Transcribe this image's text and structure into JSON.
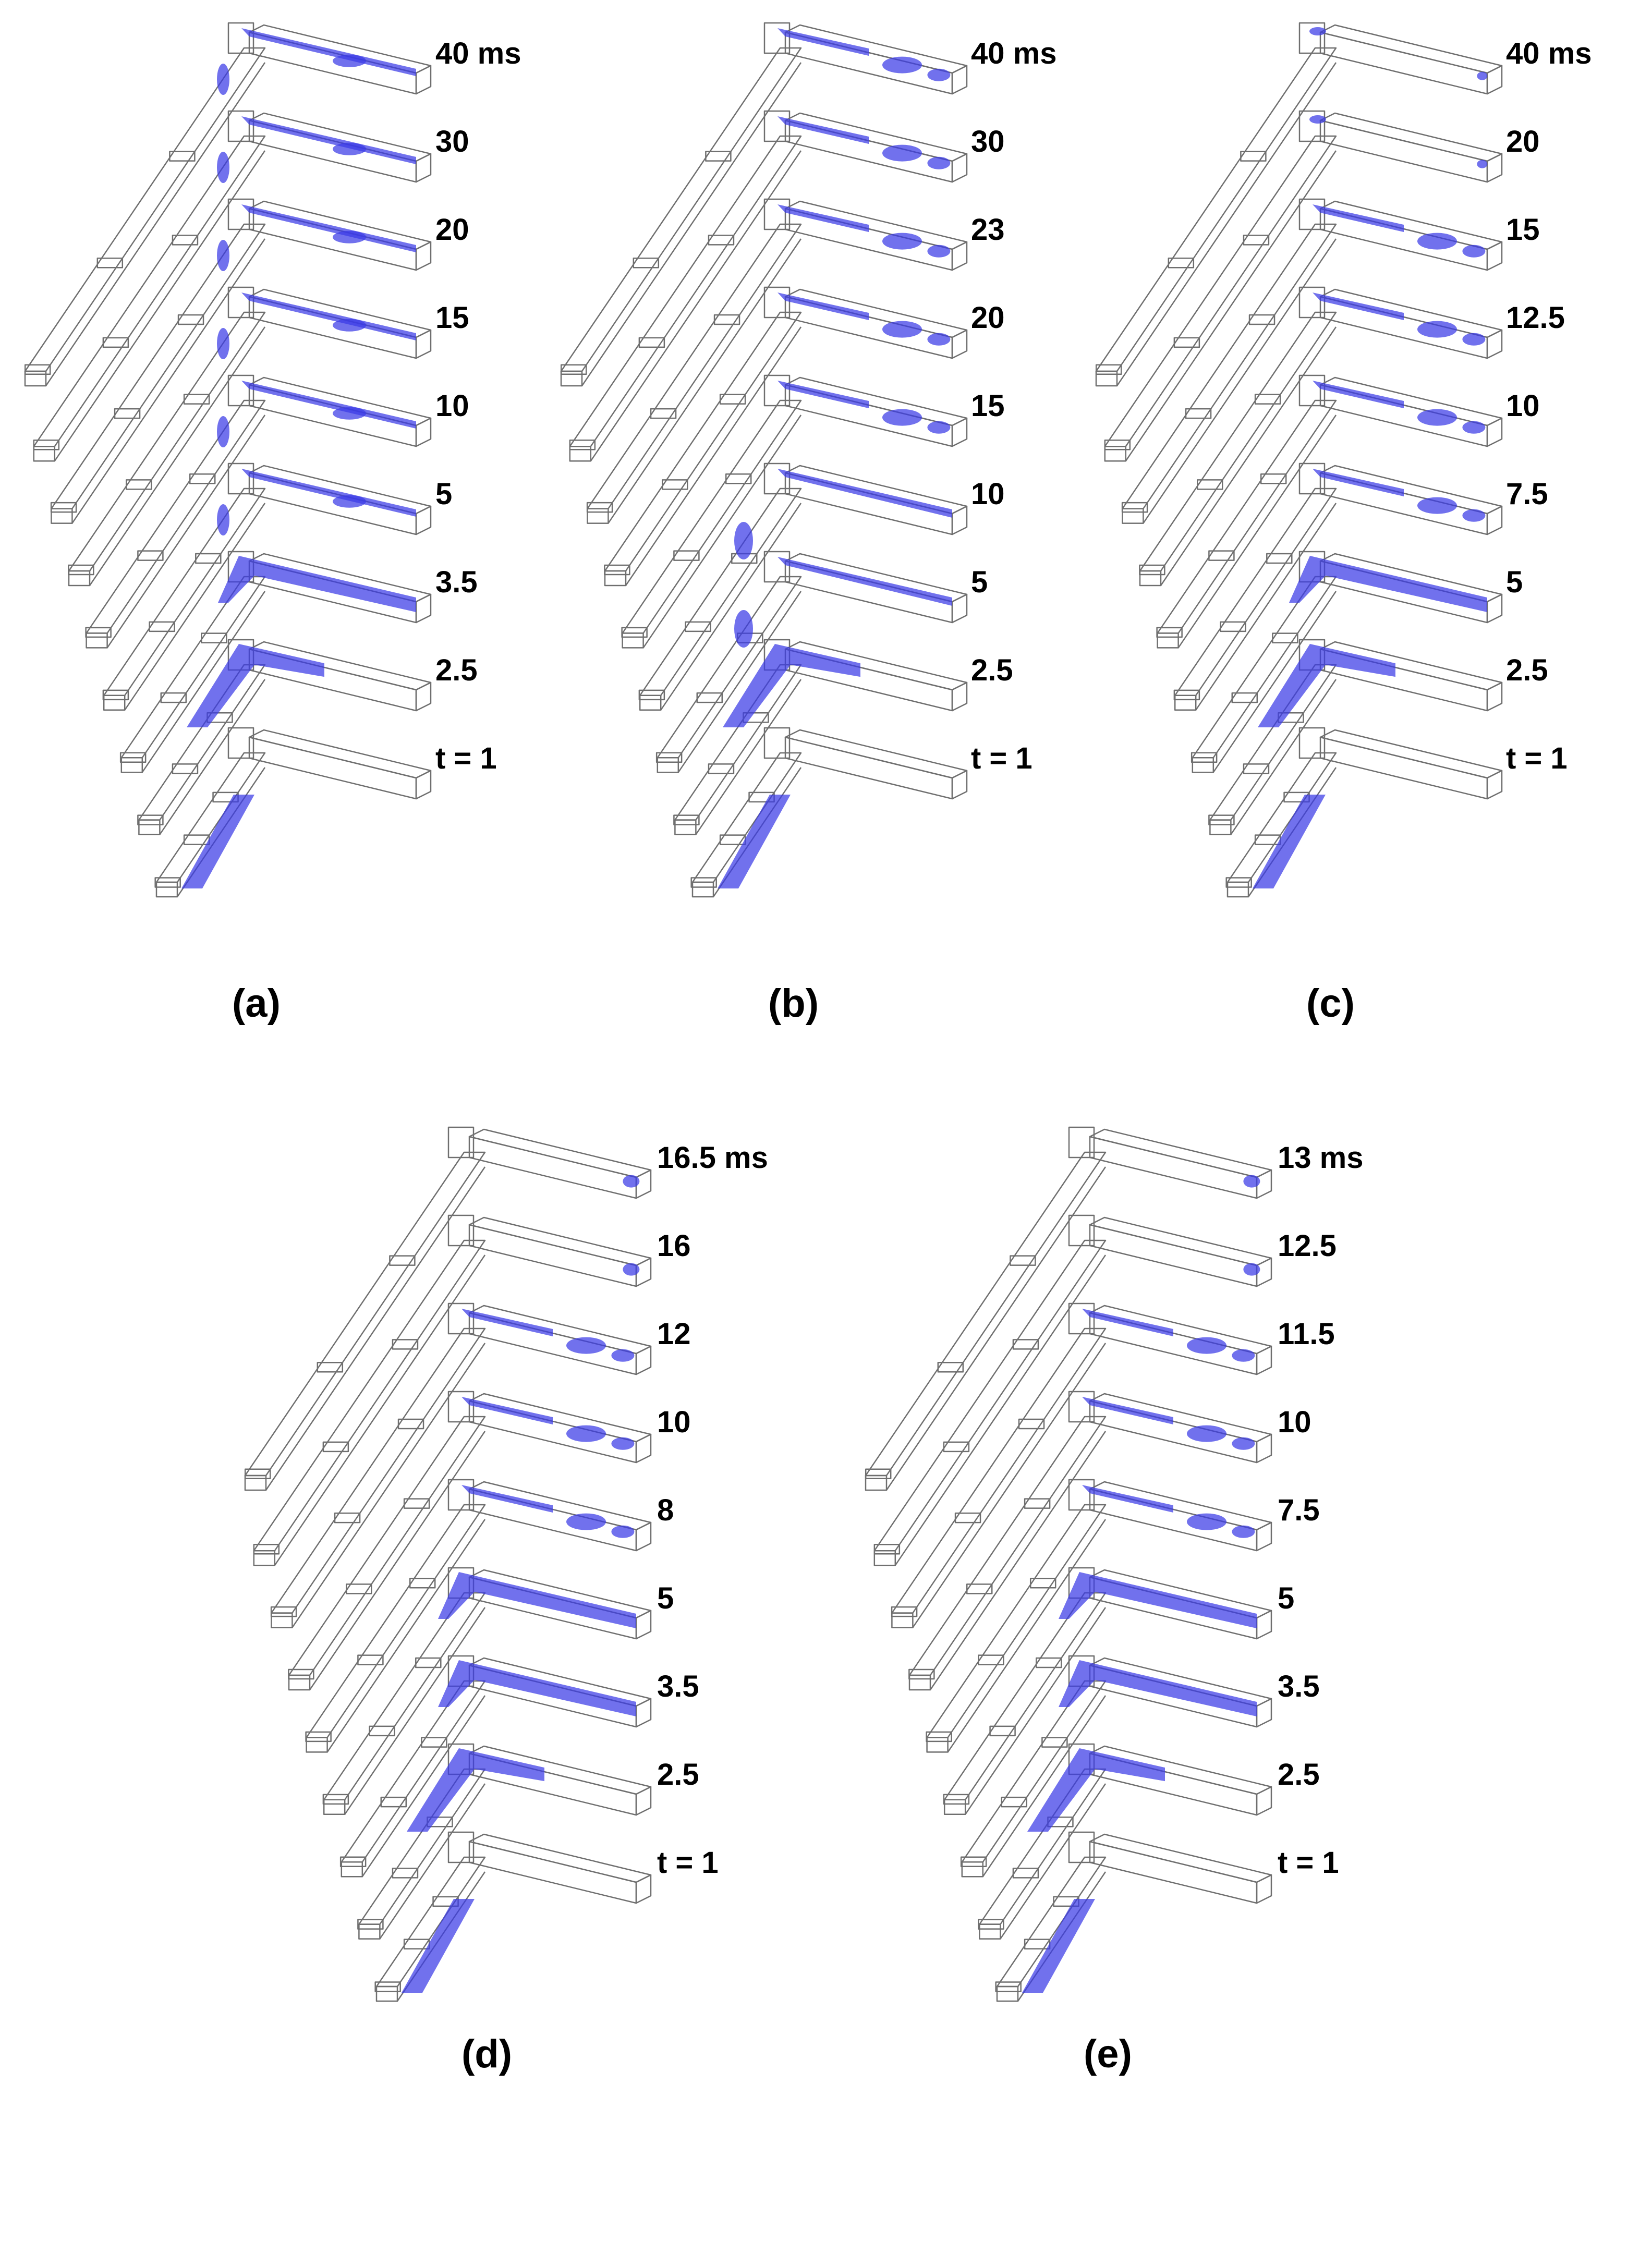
{
  "figure": {
    "description_color": "#3a3ae6",
    "wire_color": "#6f6f6f",
    "fluid_color": "#3a3ae6",
    "panels": [
      {
        "id": "a",
        "label": "(a)",
        "frames": [
          {
            "time": "40 ms",
            "fill": "scattered"
          },
          {
            "time": "30",
            "fill": "scattered"
          },
          {
            "time": "20",
            "fill": "scattered"
          },
          {
            "time": "15",
            "fill": "scattered"
          },
          {
            "time": "10",
            "fill": "scattered"
          },
          {
            "time": "5",
            "fill": "scattered"
          },
          {
            "time": "3.5",
            "fill": "corner-and-outlet"
          },
          {
            "time": "2.5",
            "fill": "corner"
          },
          {
            "time": "t = 1",
            "fill": "inlet-slug"
          }
        ]
      },
      {
        "id": "b",
        "label": "(b)",
        "frames": [
          {
            "time": "40 ms",
            "fill": "outlet-blobs"
          },
          {
            "time": "30",
            "fill": "outlet-blobs"
          },
          {
            "time": "23",
            "fill": "outlet-blobs"
          },
          {
            "time": "20",
            "fill": "outlet-blobs"
          },
          {
            "time": "15",
            "fill": "outlet-blobs"
          },
          {
            "time": "10",
            "fill": "outlet-and-inlet"
          },
          {
            "time": "5",
            "fill": "outlet-and-inlet"
          },
          {
            "time": "2.5",
            "fill": "corner"
          },
          {
            "time": "t = 1",
            "fill": "inlet-slug"
          }
        ]
      },
      {
        "id": "c",
        "label": "(c)",
        "frames": [
          {
            "time": "40 ms",
            "fill": "sparse"
          },
          {
            "time": "20",
            "fill": "sparse"
          },
          {
            "time": "15",
            "fill": "outlet-blobs"
          },
          {
            "time": "12.5",
            "fill": "outlet-blobs"
          },
          {
            "time": "10",
            "fill": "outlet-blobs"
          },
          {
            "time": "7.5",
            "fill": "outlet-blobs"
          },
          {
            "time": "5",
            "fill": "corner-and-outlet"
          },
          {
            "time": "2.5",
            "fill": "corner"
          },
          {
            "time": "t = 1",
            "fill": "inlet-slug"
          }
        ]
      },
      {
        "id": "d",
        "label": "(d)",
        "frames": [
          {
            "time": "16.5 ms",
            "fill": "tip"
          },
          {
            "time": "16",
            "fill": "tip"
          },
          {
            "time": "12",
            "fill": "outlet-blobs"
          },
          {
            "time": "10",
            "fill": "outlet-blobs"
          },
          {
            "time": "8",
            "fill": "outlet-blobs"
          },
          {
            "time": "5",
            "fill": "corner-and-outlet"
          },
          {
            "time": "3.5",
            "fill": "corner-and-outlet"
          },
          {
            "time": "2.5",
            "fill": "corner"
          },
          {
            "time": "t = 1",
            "fill": "inlet-slug"
          }
        ]
      },
      {
        "id": "e",
        "label": "(e)",
        "frames": [
          {
            "time": "13 ms",
            "fill": "tip"
          },
          {
            "time": "12.5",
            "fill": "tip"
          },
          {
            "time": "11.5",
            "fill": "outlet-blobs"
          },
          {
            "time": "10",
            "fill": "outlet-blobs"
          },
          {
            "time": "7.5",
            "fill": "outlet-blobs"
          },
          {
            "time": "5",
            "fill": "corner-and-outlet"
          },
          {
            "time": "3.5",
            "fill": "corner-and-outlet"
          },
          {
            "time": "2.5",
            "fill": "corner"
          },
          {
            "time": "t = 1",
            "fill": "inlet-slug"
          }
        ]
      }
    ]
  }
}
